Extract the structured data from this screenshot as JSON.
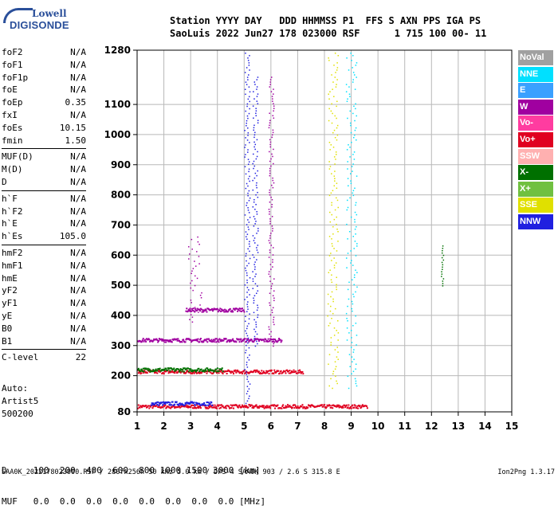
{
  "logo": {
    "line1": "Lowell",
    "line2": "DIGISONDE"
  },
  "header": {
    "line1": "Station YYYY DAY   DDD HHMMSS P1  FFS S AXN PPS IGA PS",
    "line2": "SaoLuis 2022 Jun27 178 023000 RSF      1 715 100 00- 11"
  },
  "params": [
    [
      {
        "name": "foF2",
        "value": "N/A"
      },
      {
        "name": "foF1",
        "value": "N/A"
      },
      {
        "name": "foF1p",
        "value": "N/A"
      },
      {
        "name": "foE",
        "value": "N/A"
      },
      {
        "name": "foEp",
        "value": "0.35"
      },
      {
        "name": "fxI",
        "value": "N/A"
      },
      {
        "name": "foEs",
        "value": "10.15"
      },
      {
        "name": "fmin",
        "value": "1.50"
      }
    ],
    [
      {
        "name": "MUF(D)",
        "value": "N/A"
      },
      {
        "name": "M(D)",
        "value": "N/A"
      },
      {
        "name": "D",
        "value": "N/A"
      }
    ],
    [
      {
        "name": "h`F",
        "value": "N/A"
      },
      {
        "name": "h`F2",
        "value": "N/A"
      },
      {
        "name": "h`E",
        "value": "N/A"
      },
      {
        "name": "h`Es",
        "value": "105.0"
      }
    ],
    [
      {
        "name": "hmF2",
        "value": "N/A"
      },
      {
        "name": "hmF1",
        "value": "N/A"
      },
      {
        "name": "hmE",
        "value": "N/A"
      },
      {
        "name": "yF2",
        "value": "N/A"
      },
      {
        "name": "yF1",
        "value": "N/A"
      },
      {
        "name": "yE",
        "value": "N/A"
      },
      {
        "name": "B0",
        "value": "N/A"
      },
      {
        "name": "B1",
        "value": "N/A"
      }
    ],
    [
      {
        "name": "C-level",
        "value": "22"
      }
    ]
  ],
  "auto": {
    "line1": "Auto:",
    "line2": "Artist5",
    "line3": "500200"
  },
  "legend": [
    {
      "label": "NoVal",
      "color": "#a0a0a0"
    },
    {
      "label": "NNE",
      "color": "#00e0ff"
    },
    {
      "label": "E",
      "color": "#3aa0ff"
    },
    {
      "label": "W",
      "color": "#a000a0"
    },
    {
      "label": "Vo-",
      "color": "#ff3ca0"
    },
    {
      "label": "Vo+",
      "color": "#e00020"
    },
    {
      "label": "SSW",
      "color": "#ffb0b0"
    },
    {
      "label": "X-",
      "color": "#007000"
    },
    {
      "label": "X+",
      "color": "#70c040"
    },
    {
      "label": "SSE",
      "color": "#e0e000"
    },
    {
      "label": "NNW",
      "color": "#2020e0"
    }
  ],
  "bottom_table": {
    "row1_label": "D",
    "row1_values": [
      "100",
      "200",
      "400",
      "600",
      "800",
      "1000",
      "1500",
      "3000"
    ],
    "row1_unit": "[km]",
    "row2_label": "MUF",
    "row2_values": [
      "0.0",
      "0.0",
      "0.0",
      "0.0",
      "0.0",
      "0.0",
      "0.0",
      "0.0"
    ],
    "row2_unit": "[MHz]"
  },
  "footer": {
    "left": "SAA0K_2022178023000.RSF / 280fx256h 50 kHz 5.0 km / DPS-4 SAA0K 903 / 2.6 S 315.8 E",
    "right": "Ion2Png 1.3.17"
  },
  "chart_data": {
    "type": "scatter",
    "title": "",
    "xlabel": "",
    "ylabel": "",
    "xlim": [
      1,
      15
    ],
    "ylim": [
      80,
      1280
    ],
    "x_ticks": [
      "1",
      "2",
      "3",
      "4",
      "5",
      "6",
      "7",
      "8",
      "9",
      "10",
      "11",
      "12",
      "13",
      "14",
      "15"
    ],
    "y_ticks": [
      {
        "value": 80,
        "label": "80"
      },
      {
        "value": 200,
        "label": "200"
      },
      {
        "value": 300,
        "label": "300"
      },
      {
        "value": 400,
        "label": "400"
      },
      {
        "value": 500,
        "label": "500"
      },
      {
        "value": 600,
        "label": "600"
      },
      {
        "value": 700,
        "label": "700"
      },
      {
        "value": 800,
        "label": "800"
      },
      {
        "value": 900,
        "label": "900"
      },
      {
        "value": 1000,
        "label": "1000"
      },
      {
        "value": 1100,
        "label": "1100"
      },
      {
        "value": 1280,
        "label": "1280"
      }
    ],
    "grid": true,
    "legend_placement": "right",
    "traces": [
      {
        "name": "es-band-100",
        "f_start": 1.0,
        "f_end": 9.6,
        "h": 100,
        "color": "#e00020"
      },
      {
        "name": "es-band-100-b",
        "f_start": 1.5,
        "f_end": 3.8,
        "h": 110,
        "color": "#2020e0"
      },
      {
        "name": "es-band-215",
        "f_start": 1.0,
        "f_end": 7.2,
        "h": 215,
        "color": "#e00020"
      },
      {
        "name": "es-band-222",
        "f_start": 1.0,
        "f_end": 4.2,
        "h": 222,
        "color": "#007000"
      },
      {
        "name": "es-band-320",
        "f_start": 1.0,
        "f_end": 6.4,
        "h": 320,
        "color": "#a000a0"
      },
      {
        "name": "es-band-420",
        "f_start": 2.8,
        "f_end": 5.0,
        "h": 420,
        "color": "#a000a0"
      },
      {
        "name": "vert-5.1",
        "f_start": 5.0,
        "f_end": 5.2,
        "h_start": 110,
        "h_end": 1280,
        "color": "#2020e0"
      },
      {
        "name": "vert-5.4",
        "f_start": 5.3,
        "f_end": 5.5,
        "h_start": 300,
        "h_end": 1200,
        "color": "#2020e0"
      },
      {
        "name": "vert-6.0",
        "f_start": 5.9,
        "f_end": 6.1,
        "h_start": 300,
        "h_end": 1200,
        "color": "#a000a0"
      },
      {
        "name": "vert-3.0",
        "f_start": 2.9,
        "f_end": 3.4,
        "h_start": 380,
        "h_end": 670,
        "color": "#a000a0"
      },
      {
        "name": "vert-8.3",
        "f_start": 8.1,
        "f_end": 8.5,
        "h_start": 160,
        "h_end": 1280,
        "color": "#e0e000"
      },
      {
        "name": "vert-9.0",
        "f_start": 8.8,
        "f_end": 9.2,
        "h_start": 160,
        "h_end": 1280,
        "color": "#00e0ff"
      },
      {
        "name": "vert-12.4",
        "f_start": 12.35,
        "f_end": 12.45,
        "h_start": 500,
        "h_end": 640,
        "color": "#007000"
      }
    ]
  }
}
